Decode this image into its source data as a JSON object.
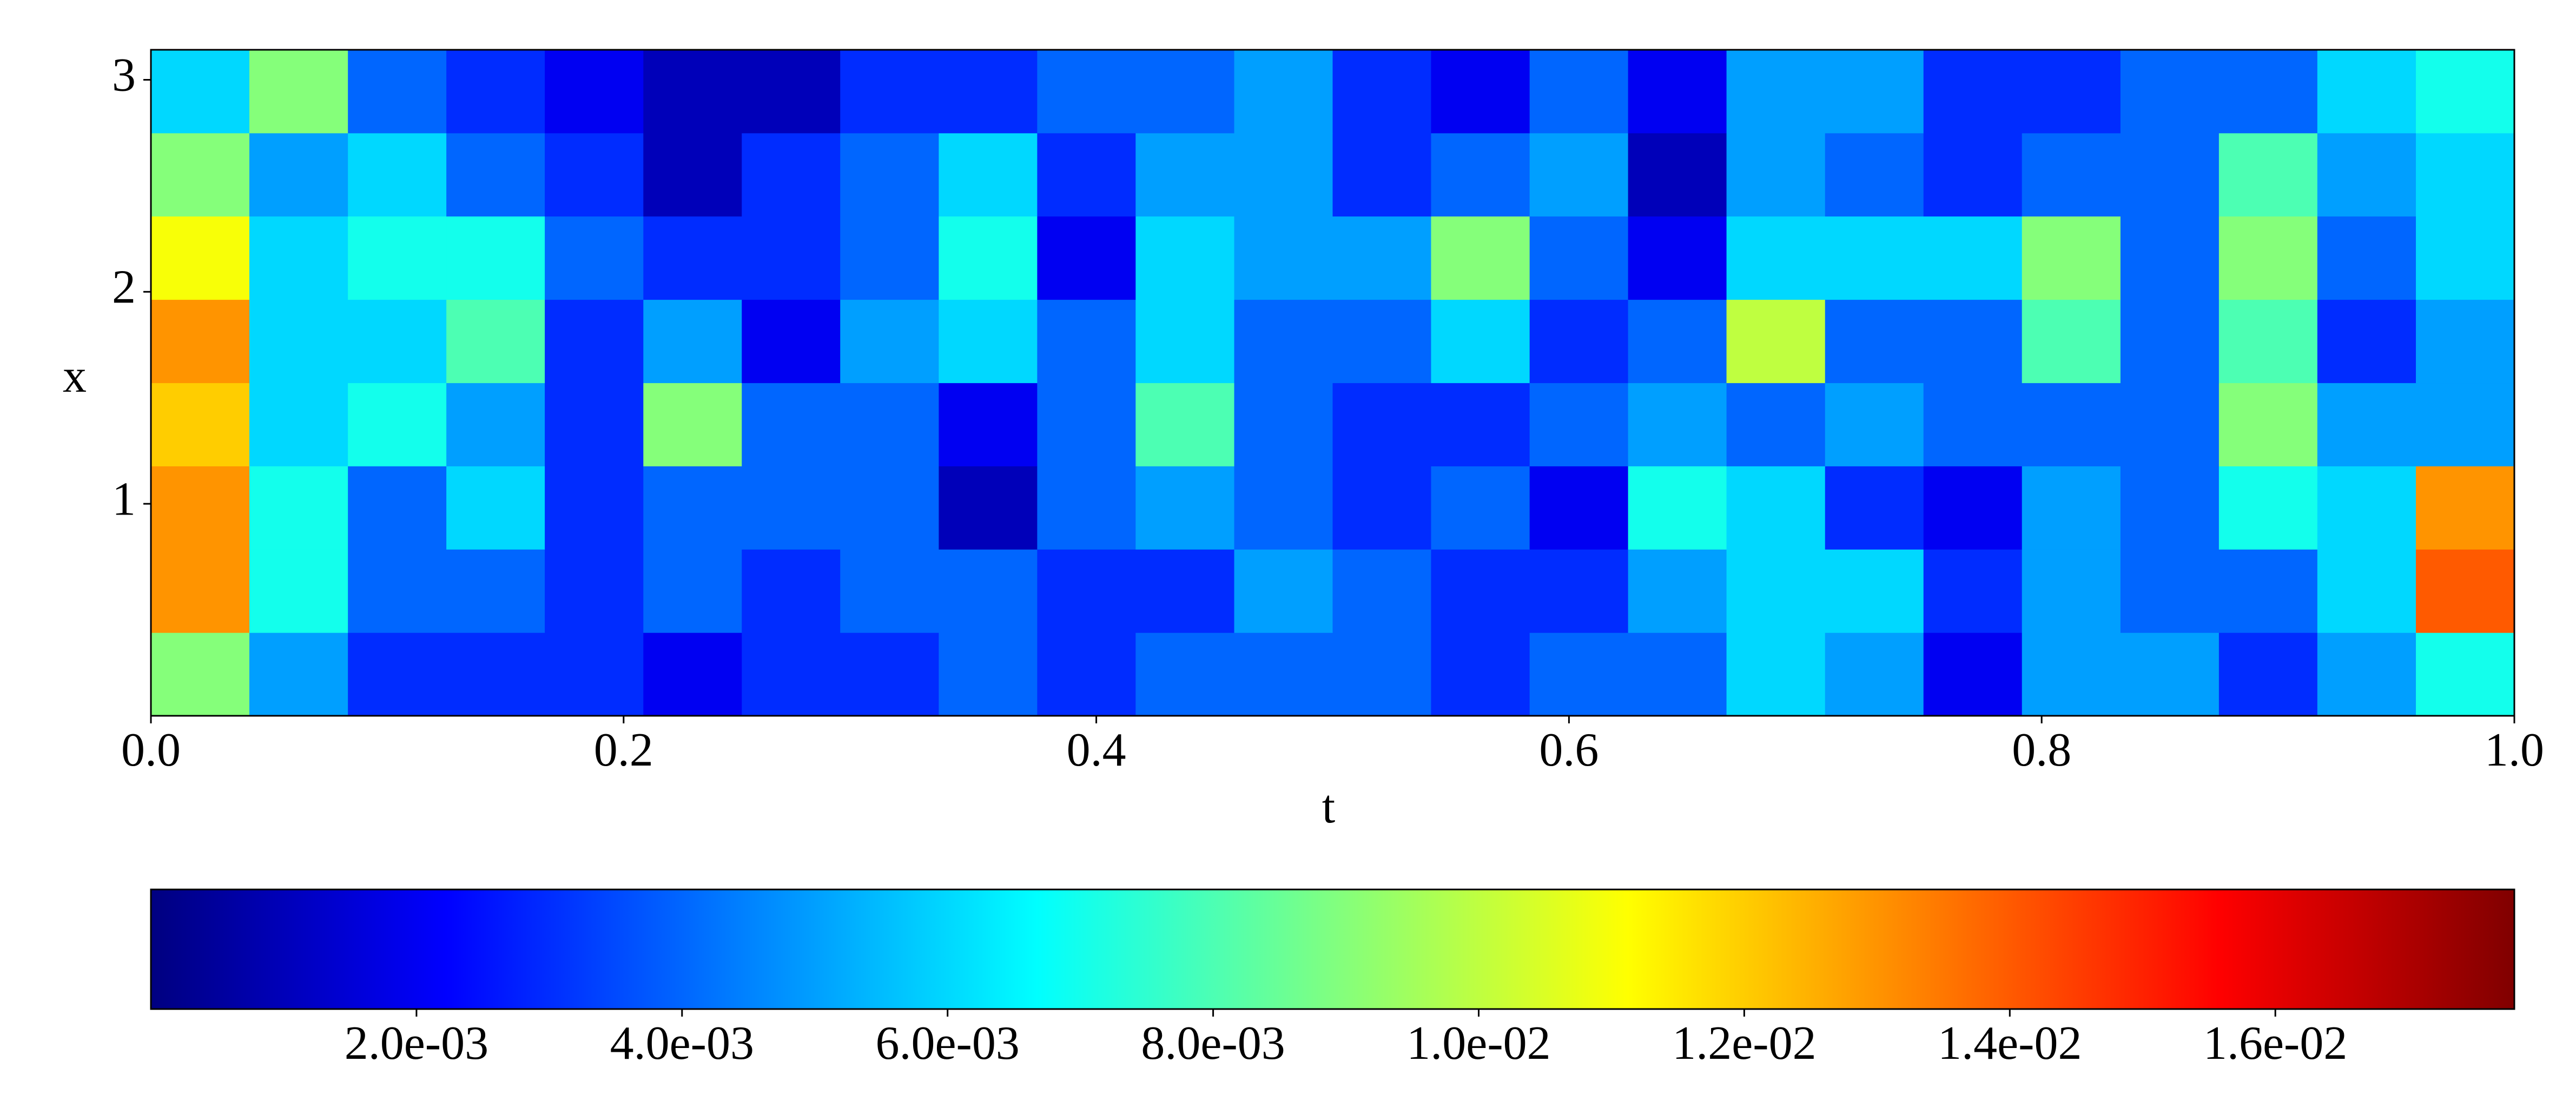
{
  "chart_data": {
    "type": "heatmap",
    "xlabel": "t",
    "ylabel": "x",
    "xlim": [
      0,
      1
    ],
    "ylim": [
      0,
      3.1416
    ],
    "xticks": [
      {
        "value": 0,
        "label": "0.0"
      },
      0.2,
      0.4,
      0.6,
      0.8,
      {
        "value": 1,
        "label": "1.0"
      }
    ],
    "yticks": [
      1,
      2,
      3
    ],
    "colormap": "jet",
    "clim": [
      0,
      0.0178
    ],
    "cticks": [
      {
        "value": 0.002,
        "label": "2.0e-03"
      },
      {
        "value": 0.004,
        "label": "4.0e-03"
      },
      {
        "value": 0.006,
        "label": "6.0e-03"
      },
      {
        "value": 0.008,
        "label": "8.0e-03"
      },
      {
        "value": 0.01,
        "label": "1.0e-02"
      },
      {
        "value": 0.012,
        "label": "1.2e-02"
      },
      {
        "value": 0.014,
        "label": "1.4e-02"
      },
      {
        "value": 0.016,
        "label": "1.6e-02"
      }
    ],
    "t": [
      0.0208,
      0.0625,
      0.1042,
      0.1458,
      0.1875,
      0.2292,
      0.2708,
      0.3125,
      0.3542,
      0.3958,
      0.4375,
      0.4792,
      0.5208,
      0.5625,
      0.6042,
      0.6458,
      0.6875,
      0.7292,
      0.7708,
      0.8125,
      0.8542,
      0.8958,
      0.9375,
      0.9792
    ],
    "x": [
      0.196,
      0.589,
      0.982,
      1.374,
      1.767,
      2.16,
      2.553,
      2.945
    ],
    "values": [
      [
        0.009,
        0.005,
        0.003,
        0.003,
        0.003,
        0.002,
        0.003,
        0.003,
        0.004,
        0.003,
        0.004,
        0.004,
        0.004,
        0.003,
        0.004,
        0.004,
        0.006,
        0.005,
        0.002,
        0.005,
        0.005,
        0.003,
        0.005,
        0.007
      ],
      [
        0.013,
        0.007,
        0.004,
        0.004,
        0.003,
        0.004,
        0.003,
        0.004,
        0.004,
        0.003,
        0.003,
        0.005,
        0.004,
        0.003,
        0.003,
        0.005,
        0.006,
        0.006,
        0.003,
        0.005,
        0.004,
        0.004,
        0.006,
        0.014
      ],
      [
        0.013,
        0.007,
        0.004,
        0.006,
        0.003,
        0.004,
        0.004,
        0.004,
        0.001,
        0.004,
        0.005,
        0.004,
        0.003,
        0.004,
        0.002,
        0.007,
        0.006,
        0.003,
        0.002,
        0.005,
        0.004,
        0.007,
        0.006,
        0.013
      ],
      [
        0.012,
        0.006,
        0.007,
        0.005,
        0.003,
        0.009,
        0.004,
        0.004,
        0.002,
        0.004,
        0.008,
        0.004,
        0.003,
        0.003,
        0.004,
        0.005,
        0.004,
        0.005,
        0.004,
        0.004,
        0.004,
        0.009,
        0.005,
        0.005
      ],
      [
        0.013,
        0.006,
        0.006,
        0.008,
        0.003,
        0.005,
        0.002,
        0.005,
        0.006,
        0.004,
        0.006,
        0.004,
        0.004,
        0.006,
        0.003,
        0.004,
        0.01,
        0.004,
        0.004,
        0.008,
        0.004,
        0.008,
        0.003,
        0.005
      ],
      [
        0.011,
        0.006,
        0.007,
        0.007,
        0.004,
        0.003,
        0.003,
        0.004,
        0.007,
        0.002,
        0.006,
        0.005,
        0.005,
        0.009,
        0.004,
        0.002,
        0.006,
        0.006,
        0.006,
        0.009,
        0.004,
        0.009,
        0.004,
        0.006
      ],
      [
        0.009,
        0.005,
        0.006,
        0.004,
        0.003,
        0.001,
        0.003,
        0.004,
        0.006,
        0.003,
        0.005,
        0.005,
        0.003,
        0.004,
        0.005,
        0.001,
        0.005,
        0.004,
        0.003,
        0.004,
        0.004,
        0.008,
        0.005,
        0.006
      ],
      [
        0.006,
        0.009,
        0.004,
        0.003,
        0.002,
        0.001,
        0.001,
        0.003,
        0.003,
        0.004,
        0.004,
        0.005,
        0.003,
        0.002,
        0.004,
        0.002,
        0.005,
        0.005,
        0.003,
        0.003,
        0.004,
        0.004,
        0.006,
        0.007
      ]
    ]
  }
}
